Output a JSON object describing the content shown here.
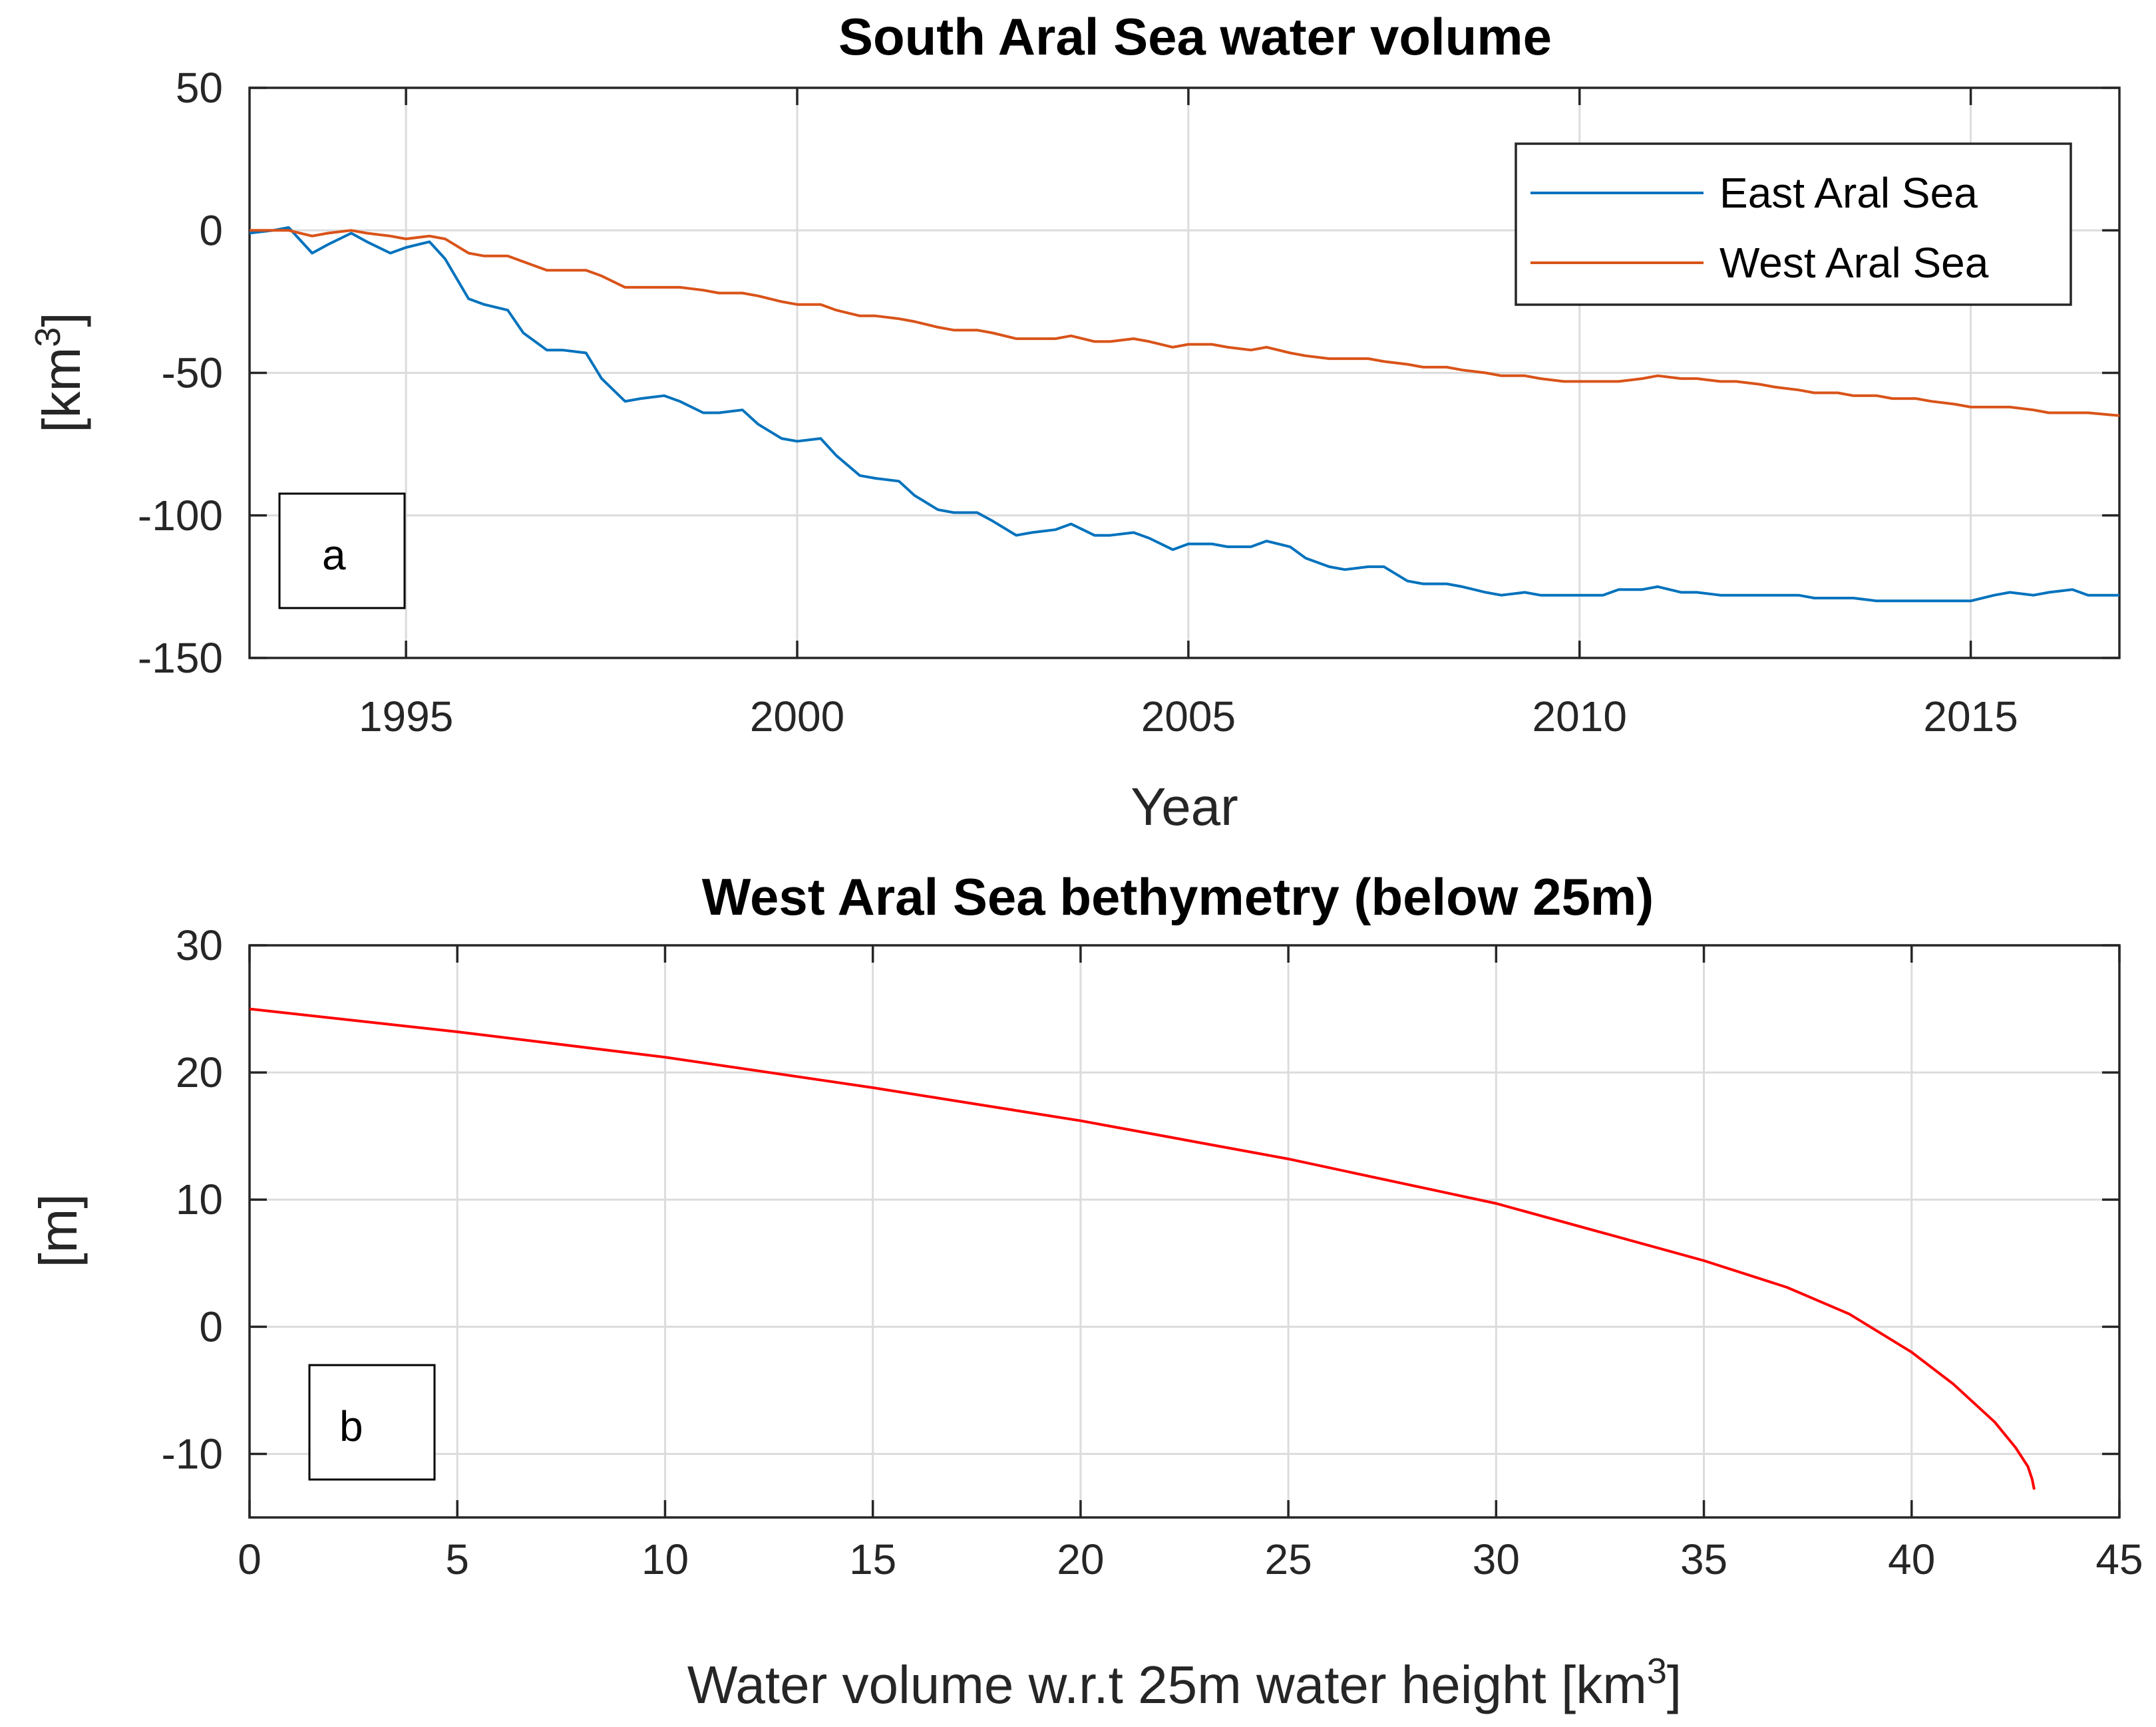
{
  "chart_data": [
    {
      "type": "line",
      "title": "South Aral Sea water volume",
      "xlabel": "Year",
      "ylabel_base": "[km",
      "ylabel_sup": "3",
      "ylabel_close": "]",
      "xlim": [
        1993.0,
        2016.9
      ],
      "ylim": [
        -150,
        50
      ],
      "xticks": [
        1995,
        2000,
        2005,
        2010,
        2015
      ],
      "xtick_labels": [
        "1995",
        "2000",
        "2005",
        "2010",
        "2015"
      ],
      "yticks": [
        -150,
        -100,
        -50,
        0,
        50
      ],
      "ytick_labels": [
        "-150",
        "-100",
        "-50",
        "0",
        "50"
      ],
      "grid": true,
      "legend_position": "top-right",
      "panel_label": "a",
      "series": [
        {
          "name": "East Aral Sea",
          "color": "#0072BD",
          "x": [
            1993.0,
            1993.3,
            1993.5,
            1993.8,
            1994.0,
            1994.3,
            1994.5,
            1994.8,
            1995.0,
            1995.3,
            1995.5,
            1995.8,
            1996.0,
            1996.3,
            1996.5,
            1996.8,
            1997.0,
            1997.3,
            1997.5,
            1997.8,
            1998.0,
            1998.3,
            1998.5,
            1998.8,
            1999.0,
            1999.3,
            1999.5,
            1999.8,
            2000.0,
            2000.3,
            2000.5,
            2000.8,
            2001.0,
            2001.3,
            2001.5,
            2001.8,
            2002.0,
            2002.3,
            2002.5,
            2002.8,
            2003.0,
            2003.3,
            2003.5,
            2003.8,
            2004.0,
            2004.3,
            2004.5,
            2004.8,
            2005.0,
            2005.3,
            2005.5,
            2005.8,
            2006.0,
            2006.3,
            2006.5,
            2006.8,
            2007.0,
            2007.3,
            2007.5,
            2007.8,
            2008.0,
            2008.3,
            2008.5,
            2008.8,
            2009.0,
            2009.3,
            2009.5,
            2009.8,
            2010.0,
            2010.3,
            2010.5,
            2010.8,
            2011.0,
            2011.3,
            2011.5,
            2011.8,
            2012.0,
            2012.3,
            2012.5,
            2012.8,
            2013.0,
            2013.3,
            2013.5,
            2013.8,
            2014.0,
            2014.3,
            2014.5,
            2014.8,
            2015.0,
            2015.3,
            2015.5,
            2015.8,
            2016.0,
            2016.3,
            2016.5,
            2016.9
          ],
          "y": [
            -1,
            0,
            1,
            -8,
            -5,
            -1,
            -4,
            -8,
            -6,
            -4,
            -10,
            -24,
            -26,
            -28,
            -36,
            -42,
            -42,
            -43,
            -52,
            -60,
            -59,
            -58,
            -60,
            -64,
            -64,
            -63,
            -68,
            -73,
            -74,
            -73,
            -79,
            -86,
            -87,
            -88,
            -93,
            -98,
            -99,
            -99,
            -102,
            -107,
            -106,
            -105,
            -103,
            -107,
            -107,
            -106,
            -108,
            -112,
            -110,
            -110,
            -111,
            -111,
            -109,
            -111,
            -115,
            -118,
            -119,
            -118,
            -118,
            -123,
            -124,
            -124,
            -125,
            -127,
            -128,
            -127,
            -128,
            -128,
            -128,
            -128,
            -126,
            -126,
            -125,
            -127,
            -127,
            -128,
            -128,
            -128,
            -128,
            -128,
            -129,
            -129,
            -129,
            -130,
            -130,
            -130,
            -130,
            -130,
            -130,
            -128,
            -127,
            -128,
            -127,
            -126,
            -128,
            -128
          ]
        },
        {
          "name": "West Aral Sea",
          "color": "#D95319",
          "x": [
            1993.0,
            1993.3,
            1993.5,
            1993.8,
            1994.0,
            1994.3,
            1994.5,
            1994.8,
            1995.0,
            1995.3,
            1995.5,
            1995.8,
            1996.0,
            1996.3,
            1996.5,
            1996.8,
            1997.0,
            1997.3,
            1997.5,
            1997.8,
            1998.0,
            1998.3,
            1998.5,
            1998.8,
            1999.0,
            1999.3,
            1999.5,
            1999.8,
            2000.0,
            2000.3,
            2000.5,
            2000.8,
            2001.0,
            2001.3,
            2001.5,
            2001.8,
            2002.0,
            2002.3,
            2002.5,
            2002.8,
            2003.0,
            2003.3,
            2003.5,
            2003.8,
            2004.0,
            2004.3,
            2004.5,
            2004.8,
            2005.0,
            2005.3,
            2005.5,
            2005.8,
            2006.0,
            2006.3,
            2006.5,
            2006.8,
            2007.0,
            2007.3,
            2007.5,
            2007.8,
            2008.0,
            2008.3,
            2008.5,
            2008.8,
            2009.0,
            2009.3,
            2009.5,
            2009.8,
            2010.0,
            2010.3,
            2010.5,
            2010.8,
            2011.0,
            2011.3,
            2011.5,
            2011.8,
            2012.0,
            2012.3,
            2012.5,
            2012.8,
            2013.0,
            2013.3,
            2013.5,
            2013.8,
            2014.0,
            2014.3,
            2014.5,
            2014.8,
            2015.0,
            2015.3,
            2015.5,
            2015.8,
            2016.0,
            2016.3,
            2016.5,
            2016.9
          ],
          "y": [
            0,
            0,
            0,
            -2,
            -1,
            0,
            -1,
            -2,
            -3,
            -2,
            -3,
            -8,
            -9,
            -9,
            -11,
            -14,
            -14,
            -14,
            -16,
            -20,
            -20,
            -20,
            -20,
            -21,
            -22,
            -22,
            -23,
            -25,
            -26,
            -26,
            -28,
            -30,
            -30,
            -31,
            -32,
            -34,
            -35,
            -35,
            -36,
            -38,
            -38,
            -38,
            -37,
            -39,
            -39,
            -38,
            -39,
            -41,
            -40,
            -40,
            -41,
            -42,
            -41,
            -43,
            -44,
            -45,
            -45,
            -45,
            -46,
            -47,
            -48,
            -48,
            -49,
            -50,
            -51,
            -51,
            -52,
            -53,
            -53,
            -53,
            -53,
            -52,
            -51,
            -52,
            -52,
            -53,
            -53,
            -54,
            -55,
            -56,
            -57,
            -57,
            -58,
            -58,
            -59,
            -59,
            -60,
            -61,
            -62,
            -62,
            -62,
            -63,
            -64,
            -64,
            -64,
            -65
          ]
        }
      ]
    },
    {
      "type": "line",
      "title": "West Aral Sea bethymetry (below 25m)",
      "xlabel_base": "Water volume w.r.t 25m water height [km",
      "xlabel_sup": "3",
      "xlabel_close": "]",
      "ylabel": "[m]",
      "xlim": [
        0,
        45
      ],
      "ylim": [
        -15,
        30
      ],
      "xticks": [
        0,
        5,
        10,
        15,
        20,
        25,
        30,
        35,
        40,
        45
      ],
      "xtick_labels": [
        "0",
        "5",
        "10",
        "15",
        "20",
        "25",
        "30",
        "35",
        "40",
        "45"
      ],
      "yticks": [
        -10,
        0,
        10,
        20,
        30
      ],
      "ytick_labels": [
        "-10",
        "0",
        "10",
        "20",
        "30"
      ],
      "grid": true,
      "panel_label": "b",
      "series": [
        {
          "name": "West Aral Sea bathymetry",
          "color": "#FF0000",
          "x": [
            0,
            5,
            10,
            15,
            20,
            25,
            30,
            35,
            37,
            38.5,
            40,
            41,
            42,
            42.5,
            42.8,
            42.9,
            42.95
          ],
          "y": [
            25,
            23.2,
            21.2,
            18.8,
            16.2,
            13.2,
            9.7,
            5.2,
            3.1,
            1.0,
            -2.0,
            -4.5,
            -7.5,
            -9.5,
            -11.0,
            -12.0,
            -12.8
          ]
        }
      ]
    }
  ]
}
